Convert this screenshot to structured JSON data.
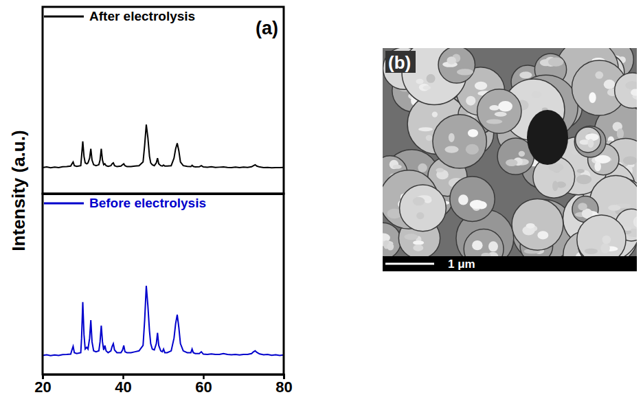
{
  "chart_data": [
    {
      "type": "line",
      "panel": "(a)",
      "y_label": "Intensity (a.u.)",
      "xlim": [
        20,
        80
      ],
      "ylim": [
        0,
        100
      ],
      "tick_labels": false,
      "legend": "top left",
      "series": [
        {
          "name": "After electrolysis",
          "color": "#000000",
          "x": [
            20,
            21,
            22,
            23,
            24,
            25,
            26,
            27,
            27.3,
            27.6,
            27.9,
            28.5,
            29.5,
            29.7,
            30.0,
            30.3,
            30.6,
            31.0,
            31.3,
            31.7,
            32.0,
            32.3,
            32.7,
            33.3,
            34.0,
            34.3,
            34.6,
            34.9,
            35.2,
            35.5,
            35.8,
            36.3,
            37.0,
            37.3,
            37.6,
            37.9,
            38.5,
            39.5,
            39.9,
            40.2,
            40.5,
            41,
            42,
            43,
            44,
            45,
            45.4,
            45.8,
            46.2,
            46.6,
            46.9,
            47.3,
            47.8,
            48.3,
            48.6,
            48.9,
            49.4,
            49.8,
            50.1,
            50.4,
            51,
            52,
            52.7,
            53.1,
            53.5,
            53.9,
            54.3,
            55,
            56,
            56.9,
            57.2,
            57.5,
            58,
            59,
            59.5,
            60,
            61,
            62,
            63,
            64,
            65,
            66,
            67,
            68,
            69,
            70,
            71,
            72,
            72.5,
            72.9,
            73.3,
            74,
            75,
            76,
            77,
            78,
            79,
            80
          ],
          "values": [
            14,
            14.3,
            13.9,
            14.2,
            14,
            14.4,
            14.5,
            14.8,
            16,
            17,
            15,
            14.6,
            15,
            20,
            28,
            20,
            16.5,
            16,
            16.5,
            19,
            24,
            18,
            15.5,
            15,
            15.5,
            18,
            24,
            18,
            15.5,
            16,
            15,
            14.6,
            15,
            16,
            16.5,
            15,
            14.5,
            14.8,
            15.5,
            16,
            15,
            14.5,
            14.5,
            14.8,
            15,
            17,
            26,
            37,
            30,
            20,
            16.5,
            15.5,
            15,
            16.5,
            19,
            16,
            15,
            14.8,
            15.3,
            14.8,
            14.8,
            15,
            19,
            24,
            27,
            23,
            17,
            15,
            14.6,
            14.5,
            15.2,
            14.6,
            14.3,
            14.4,
            15,
            14.3,
            14.2,
            14.4,
            14.1,
            14.2,
            14.3,
            14.1,
            14,
            14.2,
            14,
            14.2,
            14.1,
            14.4,
            15,
            15.5,
            14.8,
            14.3,
            14,
            14.1,
            13.9,
            14,
            14,
            14.1
          ]
        }
      ]
    },
    {
      "type": "line",
      "xlim": [
        20,
        80
      ],
      "xticks": [
        20,
        40,
        60,
        80
      ],
      "ylim": [
        0,
        100
      ],
      "tick_labels": "x",
      "legend": "top left",
      "series": [
        {
          "name": "Before electrolysis",
          "color": "#0000cc",
          "x": [
            20,
            21,
            22,
            23,
            24,
            25,
            26,
            27,
            27.3,
            27.6,
            27.9,
            28.5,
            29.5,
            29.7,
            30.0,
            30.3,
            30.6,
            31.0,
            31.3,
            31.7,
            32.0,
            32.3,
            32.7,
            33.3,
            34.0,
            34.3,
            34.6,
            34.9,
            35.2,
            35.5,
            35.8,
            36.3,
            37.0,
            37.3,
            37.6,
            37.9,
            38.5,
            39.5,
            39.9,
            40.2,
            40.5,
            41,
            42,
            43,
            44,
            45,
            45.4,
            45.8,
            46.2,
            46.6,
            46.9,
            47.3,
            47.8,
            48.3,
            48.6,
            48.9,
            49.4,
            49.8,
            50.1,
            50.4,
            51,
            52,
            52.7,
            53.1,
            53.5,
            53.9,
            54.3,
            55,
            56,
            56.9,
            57.2,
            57.5,
            58,
            59,
            59.5,
            60,
            61,
            62,
            63,
            64,
            65,
            66,
            67,
            68,
            69,
            70,
            71,
            72,
            72.5,
            72.9,
            73.3,
            74,
            75,
            76,
            77,
            78,
            79,
            80
          ],
          "values": [
            10.5,
            10.8,
            10.4,
            10.7,
            10.5,
            10.9,
            11,
            11.2,
            13.5,
            15.5,
            12,
            11.5,
            12,
            20,
            40,
            22,
            14,
            15,
            14,
            20,
            30,
            18,
            13,
            12.5,
            13,
            18,
            27,
            18,
            13.5,
            16,
            13,
            12,
            13,
            15.5,
            17,
            13.5,
            12,
            12,
            13.5,
            16,
            12.5,
            12,
            12,
            12.5,
            13,
            16,
            30,
            49,
            38,
            24,
            17,
            14,
            13.5,
            17,
            23,
            16,
            13,
            12.5,
            14,
            12,
            12,
            13,
            20,
            28,
            33,
            26,
            17,
            13,
            12,
            12,
            14,
            12,
            11.5,
            11.5,
            12.5,
            11.2,
            11,
            11.3,
            11,
            11,
            11.5,
            11,
            10.8,
            11,
            10.7,
            11,
            11,
            11.5,
            12.5,
            13,
            12.2,
            11.3,
            10.8,
            11,
            10.6,
            10.8,
            10.5,
            10.7
          ]
        }
      ]
    }
  ],
  "image": {
    "panel": "(b)",
    "scale_bar": "1 μm"
  }
}
